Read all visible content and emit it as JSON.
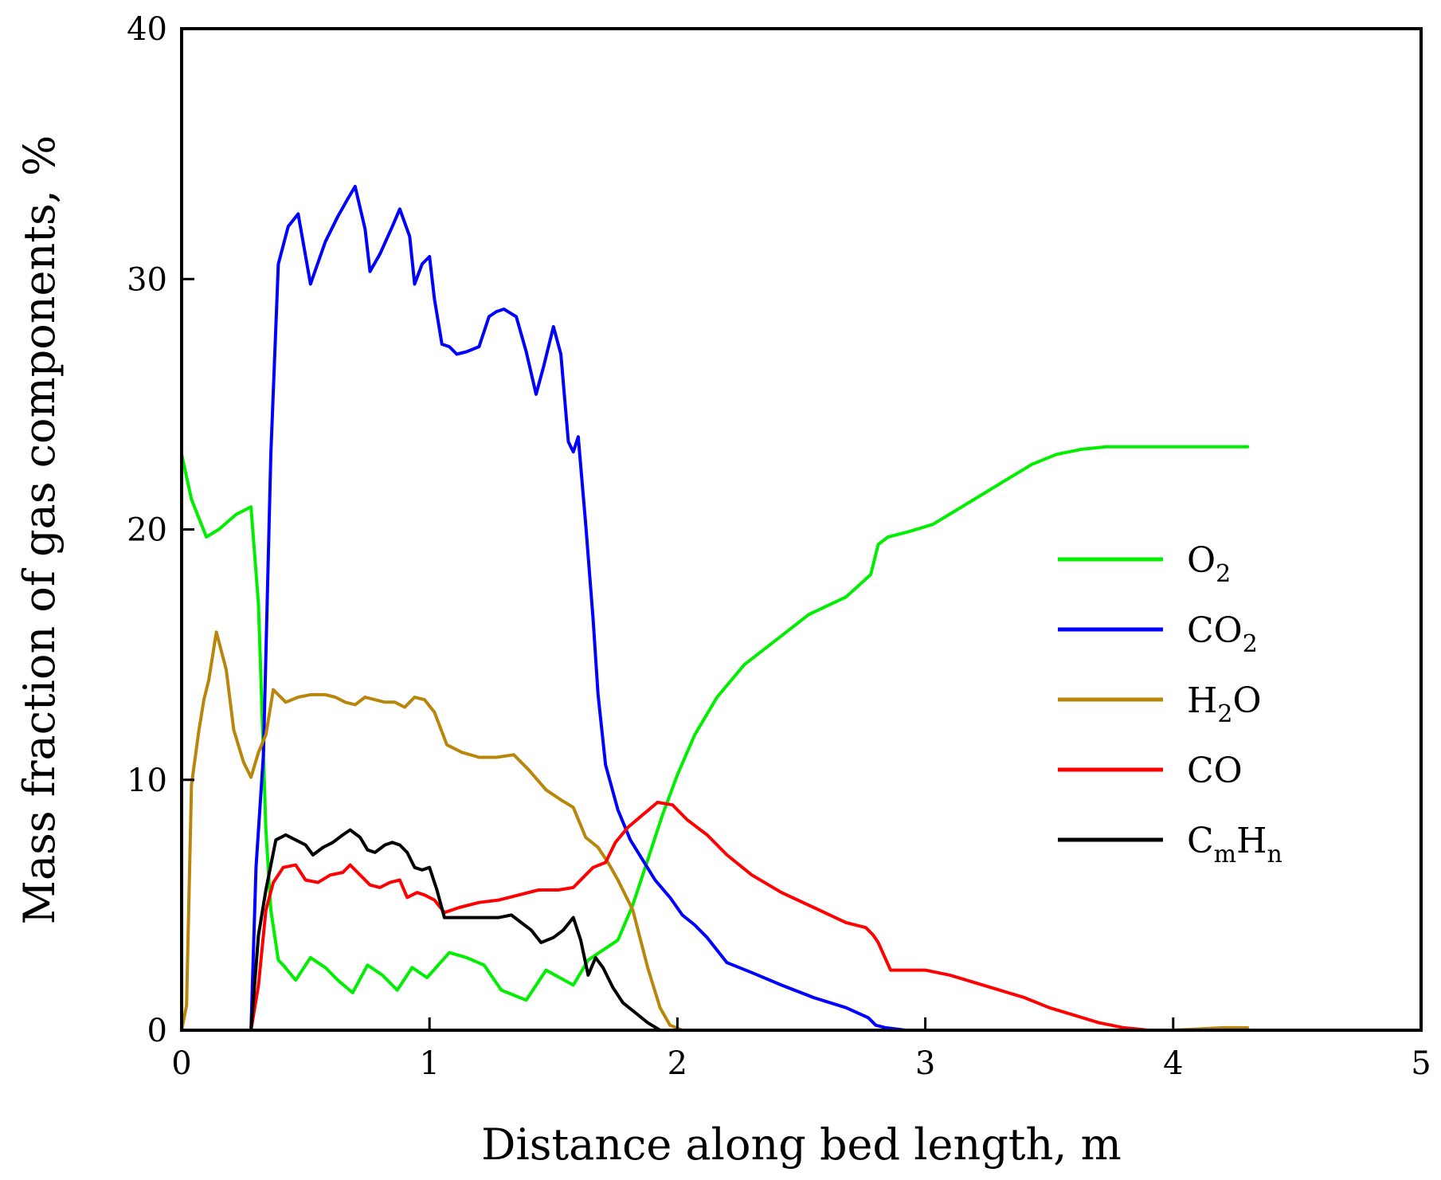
{
  "chart_data": {
    "type": "line",
    "title": "",
    "xlabel": "Distance along bed length, m",
    "ylabel": "Mass fraction of gas components, %",
    "xlim": [
      0,
      5
    ],
    "ylim": [
      0,
      40
    ],
    "xticks": [
      0,
      1,
      2,
      3,
      4,
      5
    ],
    "yticks": [
      0,
      10,
      20,
      30,
      40
    ],
    "grid": false,
    "legend_position": "right",
    "series": [
      {
        "name": "O2",
        "label_main": "O",
        "label_sub": "2",
        "label_tail": "",
        "color": "#00ee00",
        "x": [
          0,
          0.04,
          0.1,
          0.15,
          0.22,
          0.28,
          0.31,
          0.34,
          0.36,
          0.39,
          0.41,
          0.46,
          0.52,
          0.58,
          0.63,
          0.69,
          0.75,
          0.81,
          0.87,
          0.93,
          0.99,
          1.08,
          1.15,
          1.22,
          1.29,
          1.39,
          1.47,
          1.58,
          1.64,
          1.7,
          1.76,
          1.82,
          1.88,
          1.94,
          2.0,
          2.07,
          2.16,
          2.27,
          2.4,
          2.53,
          2.68,
          2.78,
          2.81,
          2.85,
          2.93,
          3.03,
          3.13,
          3.23,
          3.33,
          3.43,
          3.53,
          3.63,
          3.73,
          3.83,
          3.93,
          4.05,
          4.2,
          4.3
        ],
        "y": [
          23.0,
          21.2,
          19.7,
          20.0,
          20.6,
          20.9,
          17.0,
          8.0,
          4.8,
          2.8,
          2.6,
          2.0,
          2.9,
          2.5,
          2.0,
          1.5,
          2.6,
          2.2,
          1.6,
          2.5,
          2.1,
          3.1,
          2.9,
          2.6,
          1.6,
          1.2,
          2.4,
          1.8,
          2.8,
          3.2,
          3.6,
          5.0,
          6.8,
          8.6,
          10.2,
          11.8,
          13.3,
          14.6,
          15.6,
          16.6,
          17.3,
          18.2,
          19.4,
          19.7,
          19.9,
          20.2,
          20.8,
          21.4,
          22.0,
          22.6,
          23.0,
          23.2,
          23.3,
          23.3,
          23.3,
          23.3,
          23.3,
          23.3
        ]
      },
      {
        "name": "CO2",
        "label_main": "CO",
        "label_sub": "2",
        "label_tail": "",
        "color": "#0000ff",
        "x": [
          0,
          0.2,
          0.28,
          0.3,
          0.33,
          0.36,
          0.39,
          0.43,
          0.47,
          0.52,
          0.58,
          0.63,
          0.67,
          0.7,
          0.74,
          0.76,
          0.8,
          0.85,
          0.88,
          0.92,
          0.94,
          0.97,
          1.0,
          1.02,
          1.05,
          1.08,
          1.11,
          1.15,
          1.2,
          1.24,
          1.27,
          1.3,
          1.35,
          1.39,
          1.43,
          1.46,
          1.5,
          1.53,
          1.56,
          1.58,
          1.6,
          1.63,
          1.66,
          1.68,
          1.71,
          1.76,
          1.81,
          1.86,
          1.91,
          1.97,
          2.02,
          2.07,
          2.12,
          2.2,
          2.3,
          2.42,
          2.55,
          2.68,
          2.77,
          2.8,
          2.84,
          2.92,
          3.03,
          3.15,
          3.3,
          3.45,
          3.6,
          3.68,
          3.73,
          3.8,
          3.9,
          4.0
        ],
        "y": [
          0,
          0,
          0,
          6.5,
          11.0,
          23.0,
          30.6,
          32.1,
          32.6,
          29.8,
          31.5,
          32.5,
          33.2,
          33.7,
          32.0,
          30.3,
          31.0,
          32.1,
          32.8,
          31.7,
          29.8,
          30.6,
          30.9,
          29.2,
          27.4,
          27.3,
          27.0,
          27.1,
          27.3,
          28.5,
          28.7,
          28.8,
          28.5,
          27.1,
          25.4,
          26.5,
          28.1,
          27.0,
          23.5,
          23.1,
          23.7,
          20.2,
          16.4,
          13.4,
          10.6,
          8.8,
          7.6,
          6.8,
          6.0,
          5.3,
          4.6,
          4.2,
          3.7,
          2.7,
          2.3,
          1.8,
          1.3,
          0.9,
          0.5,
          0.2,
          0.1,
          0,
          0,
          0,
          0,
          0,
          0,
          0,
          0,
          0,
          0,
          0
        ]
      },
      {
        "name": "H2O",
        "label_main": "H",
        "label_sub": "2",
        "label_tail": "O",
        "color": "#b8860b",
        "x": [
          0,
          0.02,
          0.04,
          0.07,
          0.09,
          0.11,
          0.14,
          0.18,
          0.21,
          0.25,
          0.28,
          0.31,
          0.34,
          0.37,
          0.42,
          0.47,
          0.52,
          0.58,
          0.62,
          0.66,
          0.7,
          0.74,
          0.78,
          0.82,
          0.86,
          0.9,
          0.94,
          0.98,
          1.02,
          1.07,
          1.13,
          1.2,
          1.27,
          1.34,
          1.4,
          1.47,
          1.53,
          1.58,
          1.63,
          1.68,
          1.72,
          1.76,
          1.82,
          1.88,
          1.93,
          1.97,
          2.02,
          2.2,
          2.5,
          2.8,
          3.1,
          3.4,
          3.7,
          4.0,
          4.2,
          4.3
        ],
        "y": [
          0,
          1.0,
          9.8,
          12.0,
          13.2,
          14.0,
          15.9,
          14.4,
          12.0,
          10.7,
          10.1,
          11.1,
          11.8,
          13.6,
          13.1,
          13.3,
          13.4,
          13.4,
          13.3,
          13.1,
          13.0,
          13.3,
          13.2,
          13.1,
          13.1,
          12.9,
          13.3,
          13.2,
          12.7,
          11.4,
          11.1,
          10.9,
          10.9,
          11.0,
          10.4,
          9.6,
          9.2,
          8.9,
          7.7,
          7.3,
          6.7,
          6.0,
          4.8,
          2.5,
          0.9,
          0.2,
          0,
          0,
          0,
          0,
          0,
          0,
          0,
          0,
          0.1,
          0.1
        ]
      },
      {
        "name": "CO",
        "label_main": "CO",
        "label_sub": "",
        "label_tail": "",
        "color": "#ff0000",
        "x": [
          0,
          0.2,
          0.28,
          0.31,
          0.34,
          0.37,
          0.41,
          0.46,
          0.5,
          0.55,
          0.6,
          0.65,
          0.68,
          0.72,
          0.76,
          0.8,
          0.84,
          0.88,
          0.91,
          0.95,
          0.98,
          1.02,
          1.06,
          1.12,
          1.2,
          1.28,
          1.36,
          1.44,
          1.52,
          1.58,
          1.62,
          1.66,
          1.71,
          1.75,
          1.8,
          1.86,
          1.92,
          1.98,
          2.04,
          2.12,
          2.2,
          2.3,
          2.42,
          2.55,
          2.68,
          2.76,
          2.79,
          2.81,
          2.86,
          2.92,
          3.0,
          3.1,
          3.2,
          3.3,
          3.4,
          3.5,
          3.6,
          3.7,
          3.75,
          3.8,
          3.85,
          3.9,
          4.0
        ],
        "y": [
          0,
          0,
          0,
          1.8,
          4.8,
          5.9,
          6.5,
          6.6,
          6.0,
          5.9,
          6.2,
          6.3,
          6.6,
          6.2,
          5.8,
          5.7,
          5.9,
          6.0,
          5.3,
          5.5,
          5.4,
          5.2,
          4.7,
          4.9,
          5.1,
          5.2,
          5.4,
          5.6,
          5.6,
          5.7,
          6.1,
          6.5,
          6.7,
          7.5,
          8.1,
          8.6,
          9.1,
          9.0,
          8.4,
          7.8,
          7.0,
          6.2,
          5.5,
          4.9,
          4.3,
          4.1,
          3.8,
          3.5,
          2.4,
          2.4,
          2.4,
          2.2,
          1.9,
          1.6,
          1.3,
          0.9,
          0.6,
          0.3,
          0.2,
          0.1,
          0.05,
          0,
          0
        ]
      },
      {
        "name": "CmHn",
        "label_main": "C",
        "label_sub": "m",
        "label_tail": "H",
        "label_sub2": "n",
        "color": "#000000",
        "x": [
          0,
          0.2,
          0.28,
          0.31,
          0.34,
          0.38,
          0.42,
          0.46,
          0.5,
          0.53,
          0.57,
          0.61,
          0.65,
          0.68,
          0.72,
          0.75,
          0.78,
          0.82,
          0.85,
          0.88,
          0.91,
          0.94,
          0.97,
          1.0,
          1.03,
          1.06,
          1.1,
          1.16,
          1.22,
          1.28,
          1.33,
          1.37,
          1.41,
          1.45,
          1.5,
          1.54,
          1.58,
          1.61,
          1.64,
          1.67,
          1.7,
          1.74,
          1.78,
          1.83,
          1.88,
          1.93
        ],
        "y": [
          0,
          0,
          0,
          3.8,
          5.6,
          7.6,
          7.8,
          7.6,
          7.4,
          7.0,
          7.3,
          7.5,
          7.8,
          8.0,
          7.7,
          7.2,
          7.1,
          7.4,
          7.5,
          7.4,
          7.1,
          6.5,
          6.4,
          6.5,
          5.6,
          4.5,
          4.5,
          4.5,
          4.5,
          4.5,
          4.6,
          4.3,
          4.0,
          3.5,
          3.7,
          4.0,
          4.5,
          3.6,
          2.2,
          2.9,
          2.5,
          1.7,
          1.1,
          0.7,
          0.3,
          0
        ]
      }
    ]
  }
}
